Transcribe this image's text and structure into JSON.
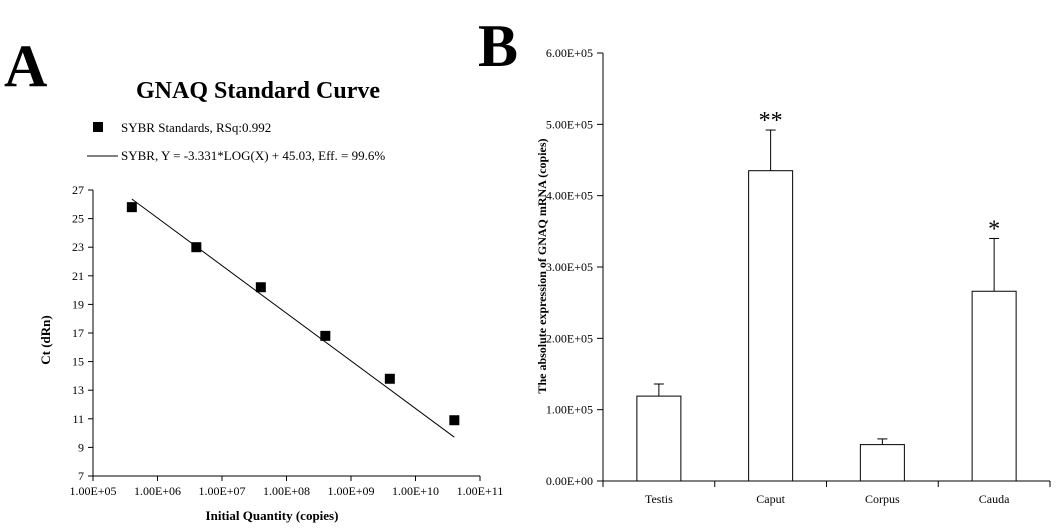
{
  "panels": {
    "a_label": "A",
    "b_label": "B"
  },
  "chart_data": [
    {
      "type": "scatter",
      "title": "GNAQ Standard Curve",
      "xlabel": "Initial Quantity (copies)",
      "ylabel": "Ct (dRn)",
      "x_scale": "log",
      "xlim": [
        100000,
        100000000000
      ],
      "ylim": [
        7,
        27
      ],
      "x_ticks": [
        "1.00E+05",
        "1.00E+06",
        "1.00E+07",
        "1.00E+08",
        "1.00E+09",
        "1.00E+10",
        "1.00E+11"
      ],
      "y_ticks": [
        "7",
        "9",
        "11",
        "13",
        "15",
        "17",
        "19",
        "21",
        "23",
        "25",
        "27"
      ],
      "legend": [
        {
          "label": "SYBR Standards, RSq:0.992",
          "marker": "square"
        },
        {
          "label": "SYBR, Y = -3.331*LOG(X) + 45.03, Eff. = 99.6%",
          "marker": "line"
        }
      ],
      "series": [
        {
          "name": "SYBR Standards",
          "x": [
            400000,
            4000000,
            40000000,
            400000000,
            4000000000,
            40000000000
          ],
          "y": [
            25.8,
            23.0,
            20.2,
            16.8,
            13.8,
            10.9
          ]
        }
      ],
      "fit": {
        "slope": -3.331,
        "intercept": 45.03,
        "x_range": [
          400000,
          40000000000
        ]
      },
      "color": "#000000"
    },
    {
      "type": "bar",
      "title": "",
      "xlabel": "",
      "ylabel": "The absolute expression of GNAQ mRNA  (copies)",
      "categories": [
        "Testis",
        "Caput",
        "Corpus",
        "Cauda"
      ],
      "values": [
        119000,
        435000,
        51000,
        266000
      ],
      "errors": [
        17000,
        57000,
        8000,
        74000
      ],
      "annotations": [
        "",
        "**",
        "",
        "*"
      ],
      "ylim": [
        0,
        600000
      ],
      "y_ticks": [
        "0.00E+00",
        "1.00E+05",
        "2.00E+05",
        "3.00E+05",
        "4.00E+05",
        "5.00E+05",
        "6.00E+05"
      ],
      "bar_fill": "#ffffff",
      "bar_stroke": "#000000"
    }
  ]
}
